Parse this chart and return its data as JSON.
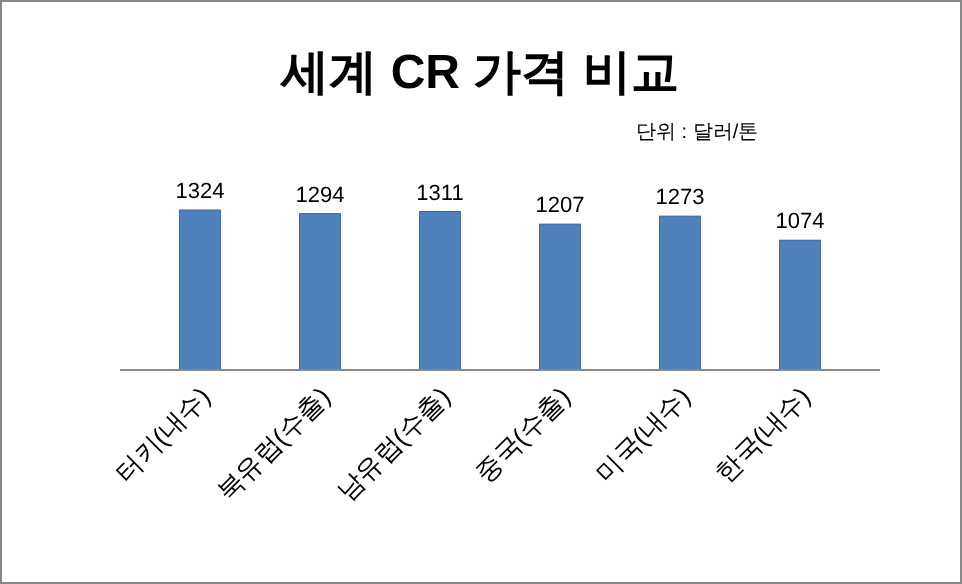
{
  "chart_data": {
    "type": "bar",
    "title": "세계 CR 가격 비교",
    "subtitle": "단위 : 달러/톤",
    "categories": [
      "터키(내수)",
      "북유럽(수출)",
      "남유럽(수출)",
      "중국(수출)",
      "미국(내수)",
      "한국(내수)"
    ],
    "values": [
      1324,
      1294,
      1311,
      1207,
      1273,
      1074
    ],
    "color": "#4f81bd",
    "data_labels": true
  }
}
